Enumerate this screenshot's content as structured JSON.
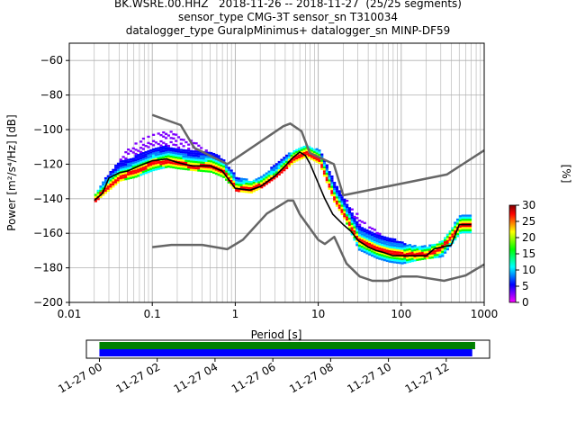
{
  "title_lines": [
    "BK.WSRE.00.HHZ   2018-11-26 -- 2018-11-27  (25/25 segments)",
    "sensor_type CMG-3T sensor_sn T310034",
    "datalogger_type GuralpMinimus+ datalogger_sn MINP-DF59"
  ],
  "chart_data": [
    {
      "type": "heatmap",
      "xlabel": "Period [s]",
      "ylabel": "Power [m²/s⁴/Hz] [dB]",
      "x_scale": "log",
      "xlim": [
        0.01,
        1000
      ],
      "ylim": [
        -200,
        -50
      ],
      "x_ticks": [
        0.01,
        0.1,
        1,
        10,
        100,
        1000
      ],
      "x_tick_labels": [
        "0.01",
        "0.1",
        "1",
        "10",
        "100",
        "1000"
      ],
      "y_ticks": [
        -200,
        -180,
        -160,
        -140,
        -120,
        -100,
        -80,
        -60
      ],
      "y_tick_labels": [
        "−200",
        "−180",
        "−160",
        "−140",
        "−120",
        "−100",
        "−80",
        "−60"
      ],
      "grid": true,
      "colorbar": {
        "label": "[%]",
        "min": 0,
        "max": 30,
        "ticks": [
          0,
          5,
          10,
          15,
          20,
          25,
          30
        ],
        "colors": [
          "#ff00ff",
          "#7f00ff",
          "#0000ff",
          "#0080ff",
          "#00ffff",
          "#00ff80",
          "#00ff00",
          "#80ff00",
          "#ffff00",
          "#ff8000",
          "#ff0000",
          "#800000"
        ]
      },
      "series": [
        {
          "role": "high-noise-model",
          "color": "#666666",
          "x": [
            0.1,
            0.22,
            0.32,
            0.8,
            3.8,
            4.6,
            6.3,
            7.9,
            15.4,
            20,
            354.8,
            1000
          ],
          "y": [
            -91.5,
            -97.4,
            -110.5,
            -120,
            -98,
            -96.5,
            -101,
            -113.5,
            -120,
            -138,
            -126,
            -112
          ]
        },
        {
          "role": "low-noise-model",
          "color": "#666666",
          "x": [
            0.1,
            0.17,
            0.4,
            0.8,
            1.24,
            2.4,
            4.3,
            5,
            6,
            10,
            12,
            15.6,
            21.9,
            31.6,
            45,
            70,
            101,
            154,
            328,
            600,
            1000
          ],
          "y": [
            -168,
            -166.7,
            -166.7,
            -169.2,
            -163.7,
            -148.6,
            -141.1,
            -141.1,
            -149,
            -163.8,
            -166.2,
            -162.1,
            -177.5,
            -185,
            -187.5,
            -187.5,
            -185,
            -185,
            -187.5,
            -184.4,
            -178
          ]
        },
        {
          "role": "mode-curve",
          "color": "#000000",
          "x": [
            0.02,
            0.025,
            0.03,
            0.04,
            0.05,
            0.07,
            0.1,
            0.15,
            0.2,
            0.3,
            0.5,
            0.7,
            1,
            1.5,
            2,
            3,
            4,
            5,
            6,
            7,
            8,
            10,
            12,
            15,
            20,
            25,
            30,
            40,
            50,
            60,
            80,
            100,
            120,
            150,
            200,
            250,
            300,
            400,
            500,
            600,
            700
          ],
          "y": [
            -141,
            -137,
            -128,
            -125,
            -124,
            -121,
            -118,
            -117,
            -119,
            -121,
            -121,
            -124,
            -134,
            -135,
            -133,
            -127,
            -121,
            -116,
            -113,
            -115,
            -120,
            -131,
            -140,
            -149,
            -155,
            -159,
            -164,
            -168,
            -170,
            -171,
            -173,
            -173,
            -173,
            -173,
            -173,
            -169,
            -168,
            -167,
            -155,
            -155,
            -155
          ]
        }
      ],
      "colored_envelopes": [
        {
          "color": "#7f00ff",
          "x": [
            0.02,
            0.04,
            0.06,
            0.1,
            0.15,
            0.2,
            0.3,
            0.5,
            0.7,
            1,
            1.5,
            2,
            3,
            5,
            7,
            10,
            15,
            20,
            30,
            50,
            70,
            100,
            150,
            200,
            300,
            500,
            700
          ],
          "y": [
            -138,
            -115,
            -108,
            -103,
            -100,
            -103,
            -107,
            -112,
            -118,
            -128,
            -130,
            -128,
            -120,
            -112,
            -110,
            -112,
            -130,
            -140,
            -150,
            -158,
            -163,
            -166,
            -168,
            -168,
            -165,
            -150,
            -150
          ]
        },
        {
          "color": "#0000ff",
          "x": [
            0.02,
            0.04,
            0.06,
            0.1,
            0.15,
            0.2,
            0.3,
            0.5,
            0.7,
            1,
            1.5,
            2,
            3,
            5,
            7,
            10,
            15,
            20,
            30,
            50,
            70,
            100,
            150,
            200,
            300,
            500,
            700
          ],
          "y": [
            -142,
            -130,
            -128,
            -124,
            -122,
            -123,
            -124,
            -125,
            -128,
            -136,
            -137,
            -134,
            -128,
            -119,
            -116,
            -120,
            -142,
            -152,
            -170,
            -175,
            -177,
            -178,
            -176,
            -175,
            -174,
            -160,
            -160
          ]
        },
        {
          "color": "#00ffff",
          "x": [
            0.02,
            0.04,
            0.06,
            0.1,
            0.15,
            0.2,
            0.3,
            0.5,
            0.7,
            1,
            1.5,
            2,
            3,
            5,
            7,
            10,
            15,
            20,
            30,
            50,
            70,
            100,
            150,
            200,
            300,
            500,
            700
          ],
          "y": [
            -140,
            -133,
            -131,
            -126,
            -122,
            -121,
            -122,
            -123,
            -126,
            -135,
            -136,
            -133,
            -127,
            -118,
            -115,
            -119,
            -145,
            -156,
            -168,
            -172,
            -174,
            -175,
            -174,
            -174,
            -171,
            -158,
            -158
          ]
        },
        {
          "color": "#ff0000",
          "x": [
            0.02,
            0.04,
            0.06,
            0.1,
            0.15,
            0.2,
            0.3,
            0.5,
            0.7,
            1,
            1.5,
            2,
            3,
            5,
            7,
            10,
            15,
            20,
            30,
            50,
            70,
            100,
            150,
            200,
            300,
            500,
            700
          ],
          "y": [
            -141,
            -128,
            -125,
            -120,
            -119,
            -120,
            -122,
            -122,
            -125,
            -135,
            -135,
            -133,
            -128,
            -117,
            -114,
            -118,
            -140,
            -150,
            -165,
            -170,
            -172,
            -173,
            -173,
            -173,
            -169,
            -156,
            -156
          ]
        }
      ]
    },
    {
      "type": "timeline",
      "x_tick_labels": [
        "11-27 00",
        "11-27 02",
        "11-27 04",
        "11-27 06",
        "11-27 08",
        "11-27 10",
        "11-27 12"
      ],
      "x_ticks_hours": [
        0,
        2,
        4,
        6,
        8,
        10,
        12
      ],
      "xlim_hours": [
        -0.45,
        13.5
      ],
      "bars": [
        {
          "color": "#008000",
          "start_hours": 0,
          "end_hours": 13.0
        },
        {
          "color": "#0000ff",
          "start_hours": 0,
          "end_hours": 12.9
        }
      ]
    }
  ]
}
